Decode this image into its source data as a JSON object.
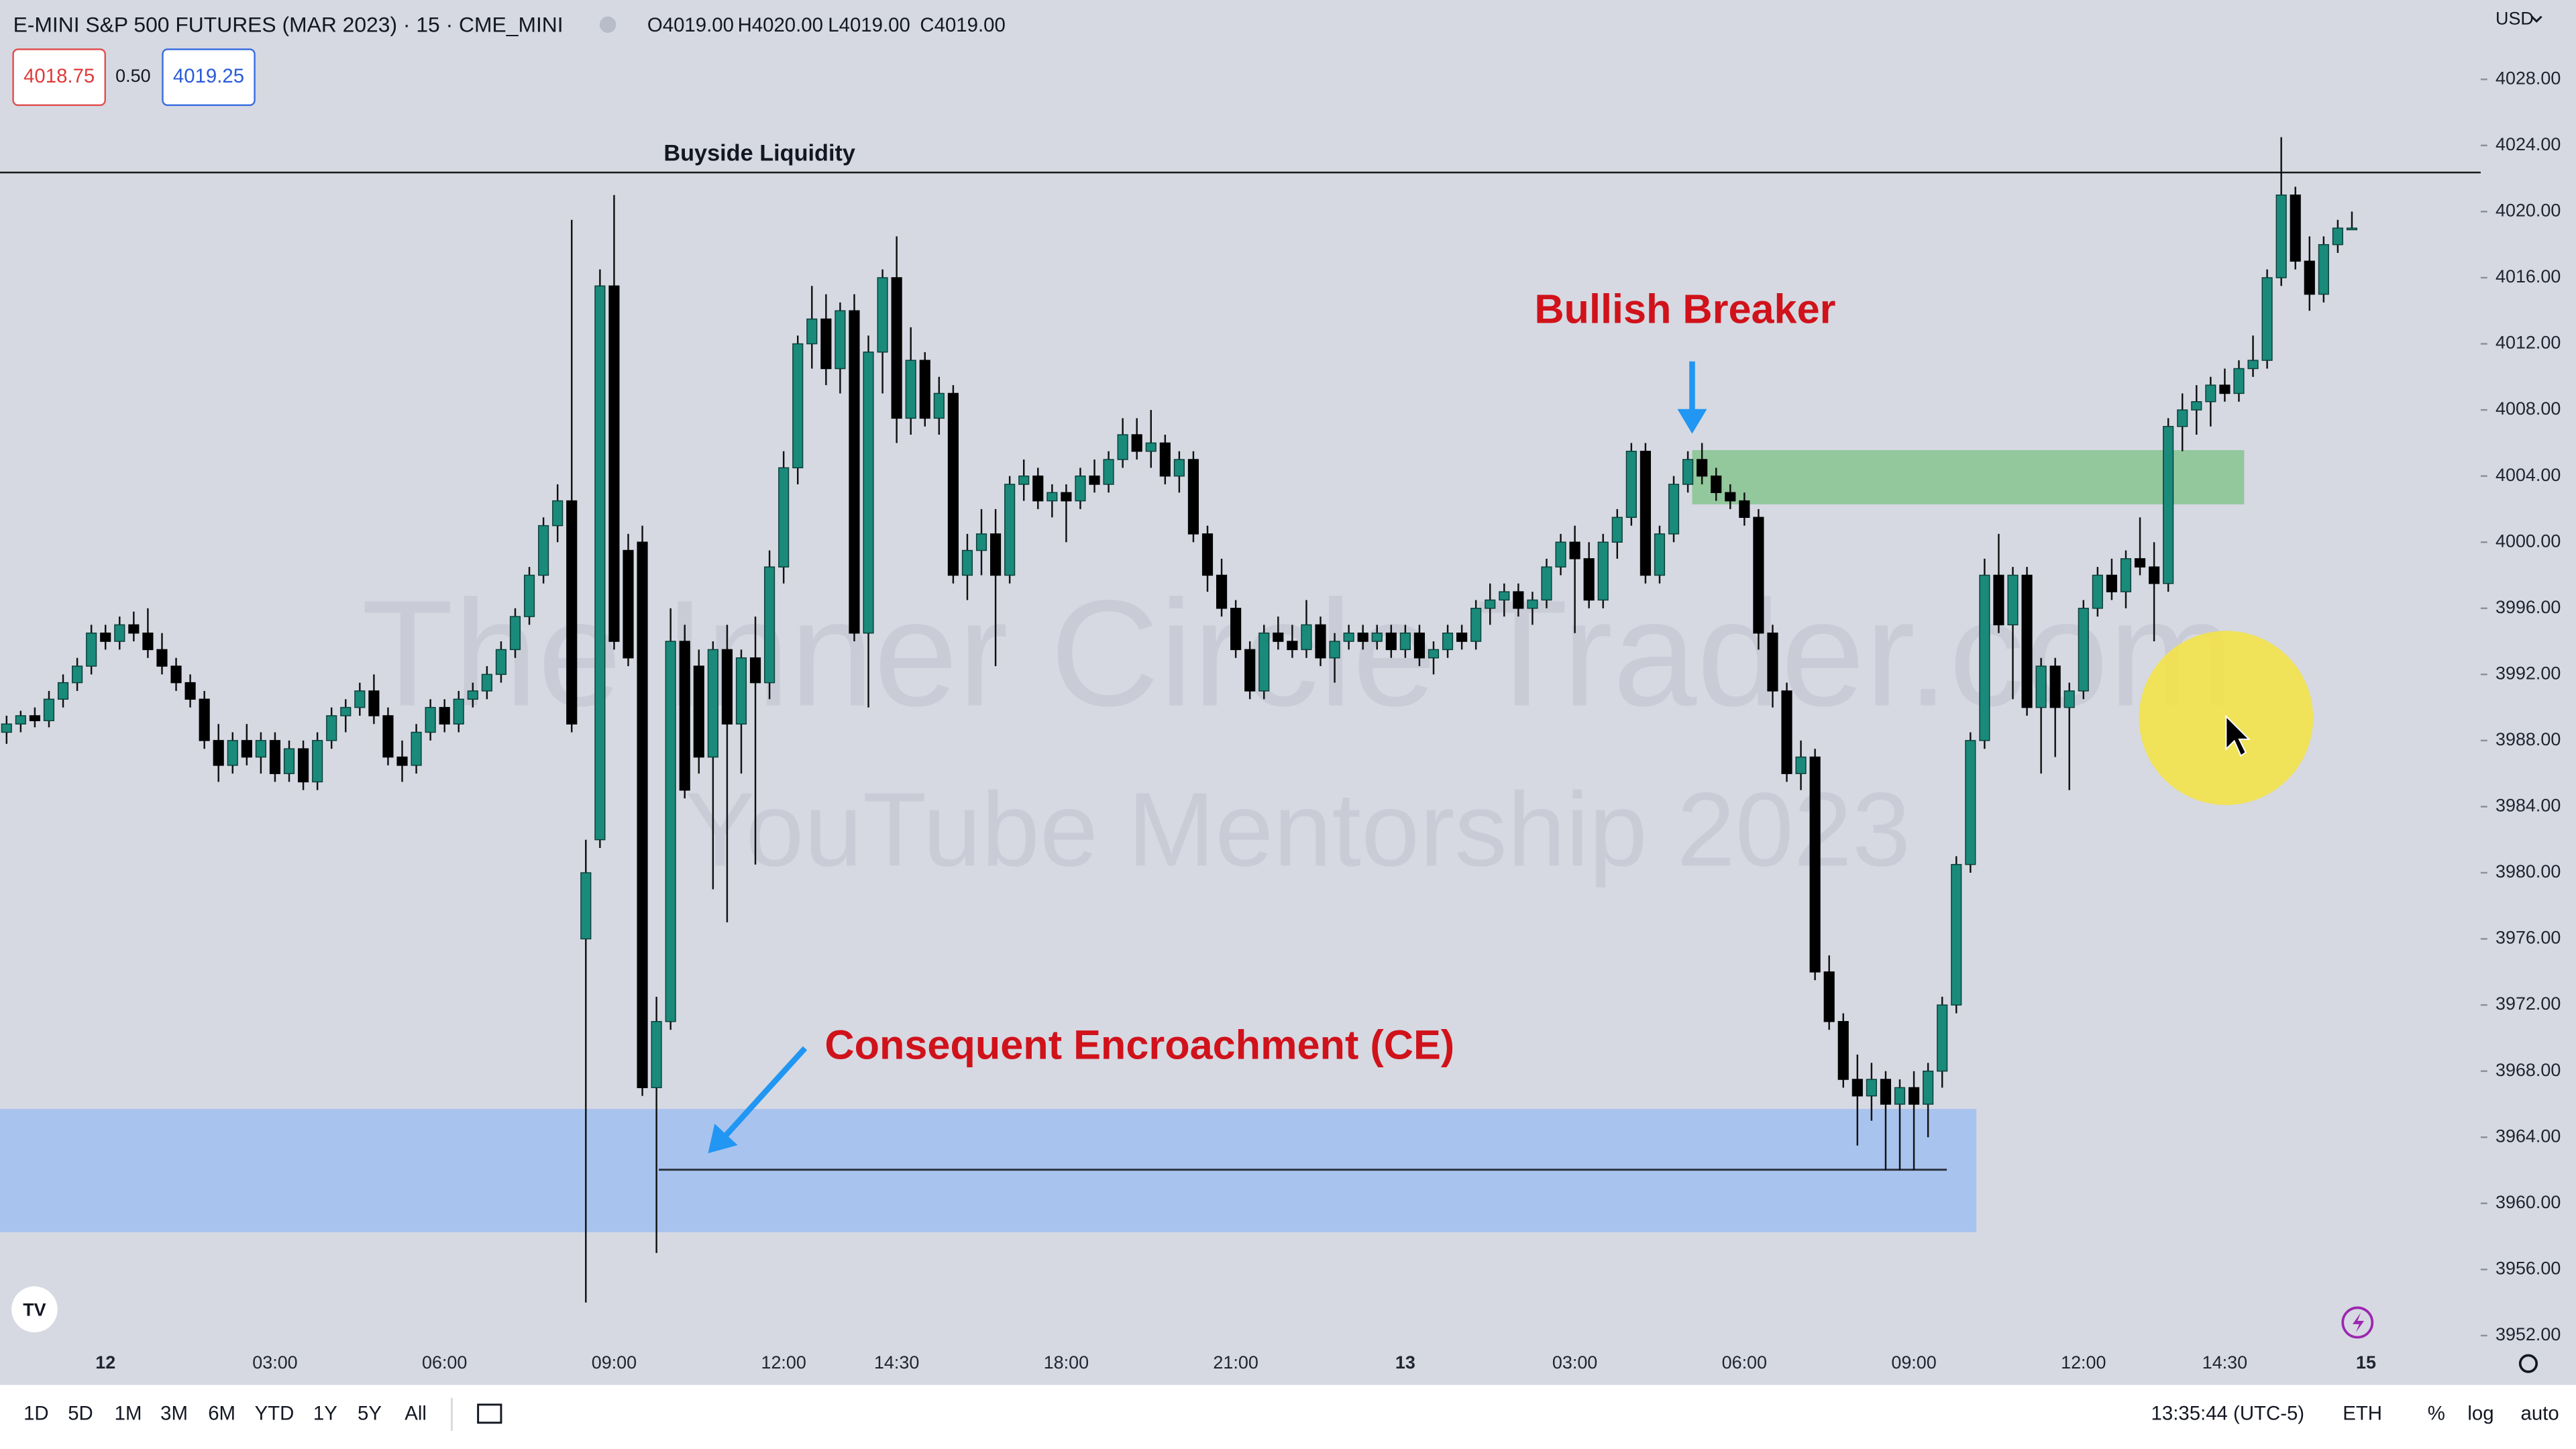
{
  "chart_data": {
    "type": "candlestick",
    "title": "E-MINI S&P 500 FUTURES (MAR 2023) · 15 · CME_MINI",
    "ohlc_legend": [
      "O4019.00",
      "H4020.00",
      "L4019.00",
      "C4019.00"
    ],
    "categories": [
      null,
      null,
      null,
      null,
      null,
      null,
      null,
      "12",
      null,
      null,
      null,
      null,
      null,
      null,
      null,
      null,
      null,
      null,
      null,
      "03:00",
      null,
      null,
      null,
      null,
      null,
      null,
      null,
      null,
      null,
      null,
      null,
      "06:00",
      null,
      null,
      null,
      null,
      null,
      null,
      null,
      null,
      null,
      null,
      null,
      "09:00",
      null,
      null,
      null,
      null,
      null,
      null,
      null,
      null,
      null,
      null,
      null,
      "12:00",
      null,
      null,
      null,
      null,
      null,
      null,
      null,
      "14:30",
      null,
      null,
      null,
      null,
      null,
      null,
      null,
      null,
      null,
      null,
      null,
      "18:00",
      null,
      null,
      null,
      null,
      null,
      null,
      null,
      null,
      null,
      null,
      null,
      "21:00",
      null,
      null,
      null,
      null,
      null,
      null,
      null,
      null,
      null,
      null,
      null,
      "13",
      null,
      null,
      null,
      null,
      null,
      null,
      null,
      null,
      null,
      null,
      null,
      "03:00",
      null,
      null,
      null,
      null,
      null,
      null,
      null,
      null,
      null,
      null,
      null,
      "06:00",
      null,
      null,
      null,
      null,
      null,
      null,
      null,
      null,
      null,
      null,
      null,
      "09:00",
      null,
      null,
      null,
      null,
      null,
      null,
      null,
      null,
      null,
      null,
      null,
      "12:00",
      null,
      null,
      null,
      null,
      null,
      null,
      null,
      null,
      null,
      "14:30",
      null,
      null,
      null,
      null,
      null,
      null,
      null,
      null,
      null,
      "15"
    ],
    "open": [
      3988.5,
      3989.0,
      3989.5,
      3989.2,
      3990.5,
      3991.5,
      3992.5,
      3994.5,
      3994.0,
      3995.0,
      3994.5,
      3993.5,
      3992.5,
      3991.5,
      3990.5,
      3988.0,
      3986.5,
      3988.0,
      3987.0,
      3988.0,
      3986.0,
      3987.5,
      3985.5,
      3988.0,
      3989.5,
      3990.0,
      3991.0,
      3989.5,
      3987.0,
      3986.5,
      3988.5,
      3990.0,
      3989.0,
      3990.5,
      3991.0,
      3992.0,
      3993.5,
      3995.5,
      3998.0,
      4001.0,
      4002.5,
      3976.0,
      3982.0,
      4015.5,
      3999.5,
      4000.0,
      3967.0,
      3971.0,
      3994.0,
      3992.5,
      3987.0,
      3993.5,
      3989.0,
      3993.0,
      3991.5,
      3998.5,
      4004.5,
      4012.0,
      4013.5,
      4010.5,
      4014.0,
      3994.5,
      4011.5,
      4016.0,
      4007.5,
      4011.0,
      4007.5,
      4009.0,
      3998.0,
      3999.5,
      4000.5,
      3998.0,
      4003.5,
      4004.0,
      4002.5,
      4003.0,
      4002.5,
      4004.0,
      4003.5,
      4005.0,
      4006.5,
      4005.5,
      4006.0,
      4004.0,
      4005.0,
      4000.5,
      3998.0,
      3996.0,
      3993.5,
      3991.0,
      3994.5,
      3994.0,
      3993.5,
      3995.0,
      3993.0,
      3994.0,
      3994.5,
      3994.0,
      3994.5,
      3993.5,
      3994.5,
      3993.0,
      3993.5,
      3994.5,
      3994.0,
      3996.0,
      3996.5,
      3997.0,
      3996.0,
      3996.5,
      3998.5,
      4000.0,
      3999.0,
      3996.5,
      4000.0,
      4001.5,
      4005.5,
      3998.0,
      4000.5,
      4003.5,
      4005.0,
      4004.0,
      4003.0,
      4002.5,
      4001.5,
      3994.5,
      3991.0,
      3986.0,
      3987.0,
      3974.0,
      3971.0,
      3967.5,
      3966.5,
      3967.5,
      3966.0,
      3967.0,
      3966.0,
      3968.0,
      3972.0,
      3980.5,
      3988.0,
      3998.0,
      3995.0,
      3998.0,
      3990.0,
      3992.5,
      3990.0,
      3991.0,
      3996.0,
      3998.0,
      3997.0,
      3999.0,
      3998.5,
      3997.5,
      4007.0,
      4008.0,
      4008.5,
      4009.5,
      4009.0,
      4010.5,
      4011.0,
      4016.0,
      4021.0,
      4017.0,
      4015.0,
      4018.0,
      4019.0,
      null
    ],
    "high": [
      3989.5,
      3989.8,
      3990.0,
      3991.0,
      3992.0,
      3993.0,
      3995.0,
      3995.0,
      3995.5,
      3995.8,
      3996.0,
      3994.5,
      3993.0,
      3992.0,
      3991.0,
      3989.0,
      3988.5,
      3989.0,
      3988.5,
      3988.5,
      3988.0,
      3988.0,
      3988.5,
      3990.0,
      3990.5,
      3991.5,
      3992.0,
      3990.0,
      3988.0,
      3989.0,
      3990.5,
      3990.5,
      3991.0,
      3991.5,
      3992.5,
      3994.0,
      3996.0,
      3998.5,
      4001.5,
      4003.5,
      4019.5,
      3982.0,
      4016.5,
      4021.0,
      4000.5,
      4001.0,
      3972.5,
      3996.0,
      3995.0,
      3993.5,
      3994.0,
      3995.0,
      3993.5,
      3995.5,
      3999.5,
      4005.5,
      4012.5,
      4015.5,
      4015.0,
      4014.5,
      4015.0,
      4012.5,
      4016.5,
      4018.5,
      4013.0,
      4011.5,
      4010.0,
      4009.5,
      4000.5,
      4002.0,
      4002.0,
      4004.0,
      4005.0,
      4004.5,
      4003.5,
      4003.5,
      4004.5,
      4005.0,
      4005.5,
      4007.5,
      4007.5,
      4008.0,
      4006.5,
      4005.5,
      4005.5,
      4001.0,
      3999.0,
      3996.5,
      3994.0,
      3995.0,
      3995.5,
      3995.0,
      3996.5,
      3995.5,
      3994.5,
      3995.0,
      3995.0,
      3995.0,
      3995.0,
      3995.0,
      3995.0,
      3994.0,
      3995.0,
      3995.0,
      3996.5,
      3997.5,
      3997.5,
      3997.5,
      3997.0,
      3999.0,
      4000.5,
      4001.0,
      4000.0,
      4000.5,
      4002.0,
      4006.0,
      4006.0,
      4001.0,
      4004.0,
      4005.5,
      4006.0,
      4004.5,
      4003.5,
      4003.0,
      4002.0,
      3995.0,
      3991.5,
      3988.0,
      3987.5,
      3975.0,
      3971.5,
      3969.0,
      3968.5,
      3968.0,
      3967.5,
      3968.0,
      3968.5,
      3972.5,
      3981.0,
      3988.5,
      3999.0,
      4000.5,
      3998.5,
      3998.5,
      3993.0,
      3993.0,
      3991.5,
      3996.5,
      3998.5,
      3999.0,
      3999.5,
      4001.5,
      4000.0,
      4007.5,
      4009.0,
      4009.5,
      4010.0,
      4010.5,
      4011.0,
      4012.5,
      4016.5,
      4024.5,
      4021.5,
      4018.5,
      4018.5,
      4019.5,
      4020.0,
      null
    ],
    "low": [
      3987.8,
      3988.5,
      3988.8,
      3988.8,
      3990.0,
      3991.0,
      3992.0,
      3993.5,
      3993.5,
      3994.0,
      3993.0,
      3992.0,
      3991.0,
      3990.0,
      3987.5,
      3985.5,
      3986.0,
      3986.5,
      3986.0,
      3985.5,
      3985.5,
      3985.0,
      3985.0,
      3987.5,
      3988.5,
      3989.5,
      3989.0,
      3986.5,
      3985.5,
      3986.0,
      3988.0,
      3988.5,
      3988.5,
      3990.0,
      3990.5,
      3991.5,
      3993.0,
      3995.0,
      3997.5,
      4000.0,
      3988.5,
      3954.0,
      3981.5,
      3993.5,
      3992.5,
      3966.5,
      3957.0,
      3970.5,
      3984.5,
      3986.0,
      3979.0,
      3977.0,
      3986.0,
      3980.5,
      3990.5,
      3997.5,
      4003.5,
      4010.5,
      4009.5,
      4009.0,
      3994.0,
      3990.0,
      4009.0,
      4006.0,
      4006.5,
      4007.0,
      4006.5,
      3997.5,
      3996.5,
      3998.0,
      3992.5,
      3997.5,
      4002.5,
      4002.0,
      4001.5,
      4000.0,
      4002.0,
      4003.0,
      4003.0,
      4004.5,
      4005.0,
      4004.5,
      4003.5,
      4003.0,
      4000.0,
      3997.0,
      3995.5,
      3993.0,
      3990.5,
      3990.5,
      3993.5,
      3993.0,
      3993.0,
      3992.5,
      3991.5,
      3993.5,
      3993.5,
      3993.5,
      3993.0,
      3993.0,
      3992.5,
      3992.0,
      3993.0,
      3993.5,
      3993.5,
      3995.0,
      3995.5,
      3995.5,
      3995.0,
      3996.0,
      3998.0,
      3994.5,
      3996.0,
      3996.0,
      3999.0,
      4001.0,
      3997.5,
      3997.5,
      4000.0,
      4003.0,
      4003.5,
      4002.5,
      4002.0,
      4001.0,
      3993.5,
      3990.0,
      3985.5,
      3985.0,
      3973.5,
      3970.5,
      3967.0,
      3963.5,
      3965.0,
      3962.0,
      3962.0,
      3962.0,
      3964.0,
      3967.0,
      3971.5,
      3980.0,
      3987.5,
      3994.5,
      3990.5,
      3989.5,
      3986.0,
      3987.0,
      3985.0,
      3990.5,
      3995.5,
      3996.5,
      3996.0,
      3998.0,
      3994.0,
      3997.0,
      4005.5,
      4006.5,
      4007.0,
      4008.5,
      4008.5,
      4010.0,
      4010.5,
      4015.5,
      4016.5,
      4014.0,
      4014.5,
      4017.5,
      4019.0,
      null
    ],
    "close": [
      3989.0,
      3989.5,
      3989.2,
      3990.5,
      3991.5,
      3992.5,
      3994.5,
      3994.0,
      3995.0,
      3994.5,
      3993.5,
      3992.5,
      3991.5,
      3990.5,
      3988.0,
      3986.5,
      3988.0,
      3987.0,
      3988.0,
      3986.0,
      3987.5,
      3985.5,
      3988.0,
      3989.5,
      3990.0,
      3991.0,
      3989.5,
      3987.0,
      3986.5,
      3988.5,
      3990.0,
      3989.0,
      3990.5,
      3991.0,
      3992.0,
      3993.5,
      3995.5,
      3998.0,
      4001.0,
      4002.5,
      3989.0,
      3980.0,
      4015.5,
      3994.0,
      3993.0,
      3967.0,
      3971.0,
      3994.0,
      3985.0,
      3987.0,
      3993.5,
      3989.0,
      3993.0,
      3991.5,
      3998.5,
      4004.5,
      4012.0,
      4013.5,
      4010.5,
      4014.0,
      3994.5,
      4011.5,
      4016.0,
      4007.5,
      4011.0,
      4007.5,
      4009.0,
      3998.0,
      3999.5,
      4000.5,
      3998.0,
      4003.5,
      4004.0,
      4002.5,
      4003.0,
      4002.5,
      4004.0,
      4003.5,
      4005.0,
      4006.5,
      4005.5,
      4006.0,
      4004.0,
      4005.0,
      4000.5,
      3998.0,
      3996.0,
      3993.5,
      3991.0,
      3994.5,
      3994.0,
      3993.5,
      3995.0,
      3993.0,
      3994.0,
      3994.5,
      3994.0,
      3994.5,
      3993.5,
      3994.5,
      3993.0,
      3993.5,
      3994.5,
      3994.0,
      3996.0,
      3996.5,
      3997.0,
      3996.0,
      3996.5,
      3998.5,
      4000.0,
      3999.0,
      3996.5,
      4000.0,
      4001.5,
      4005.5,
      3998.0,
      4000.5,
      4003.5,
      4005.0,
      4004.0,
      4003.0,
      4002.5,
      4001.5,
      3994.5,
      3991.0,
      3986.0,
      3987.0,
      3974.0,
      3971.0,
      3967.5,
      3966.5,
      3967.5,
      3966.0,
      3967.0,
      3966.0,
      3968.0,
      3972.0,
      3980.5,
      3988.0,
      3998.0,
      3995.0,
      3998.0,
      3990.0,
      3992.5,
      3990.0,
      3991.0,
      3996.0,
      3998.0,
      3997.0,
      3999.0,
      3998.5,
      3997.5,
      4007.0,
      4008.0,
      4008.5,
      4009.5,
      4009.0,
      4010.5,
      4011.0,
      4016.0,
      4021.0,
      4017.0,
      4015.0,
      4018.0,
      4019.0,
      4019.0,
      null
    ],
    "up_color": "#1a8a7b",
    "down_color": "#000000",
    "ylim": [
      3951.5,
      4032.8
    ],
    "yticks": [
      {
        "value": 3952,
        "label": "3952.00"
      },
      {
        "value": 3956,
        "label": "3956.00"
      },
      {
        "value": 3960,
        "label": "3960.00"
      },
      {
        "value": 3964,
        "label": "3964.00"
      },
      {
        "value": 3968,
        "label": "3968.00"
      },
      {
        "value": 3972,
        "label": "3972.00"
      },
      {
        "value": 3976,
        "label": "3976.00"
      },
      {
        "value": 3980,
        "label": "3980.00"
      },
      {
        "value": 3984,
        "label": "3984.00"
      },
      {
        "value": 3988,
        "label": "3988.00"
      },
      {
        "value": 3992,
        "label": "3992.00"
      },
      {
        "value": 3996,
        "label": "3996.00"
      },
      {
        "value": 4000,
        "label": "4000.00"
      },
      {
        "value": 4004,
        "label": "4004.00"
      },
      {
        "value": 4008,
        "label": "4008.00"
      },
      {
        "value": 4012,
        "label": "4012.00"
      },
      {
        "value": 4016,
        "label": "4016.00"
      },
      {
        "value": 4020,
        "label": "4020.00"
      },
      {
        "value": 4024,
        "label": "4024.00"
      },
      {
        "value": 4028,
        "label": "4028.00"
      }
    ],
    "annotations": [
      "Buyside Liquidity",
      "Bullish Breaker",
      "Consequent Encroachment (CE)"
    ],
    "watermark": [
      "The Inner Circle Trader.com",
      "YouTube Mentorship 2023"
    ]
  },
  "ui": {
    "bid": "4018.75",
    "spread": "0.50",
    "ask": "4019.25",
    "currency": "USD",
    "ranges": [
      "1D",
      "5D",
      "1M",
      "3M",
      "6M",
      "YTD",
      "1Y",
      "5Y",
      "All"
    ],
    "clock": "13:35:44 (UTC-5)",
    "session": "ETH",
    "percent": "%",
    "log": "log",
    "auto": "auto"
  }
}
